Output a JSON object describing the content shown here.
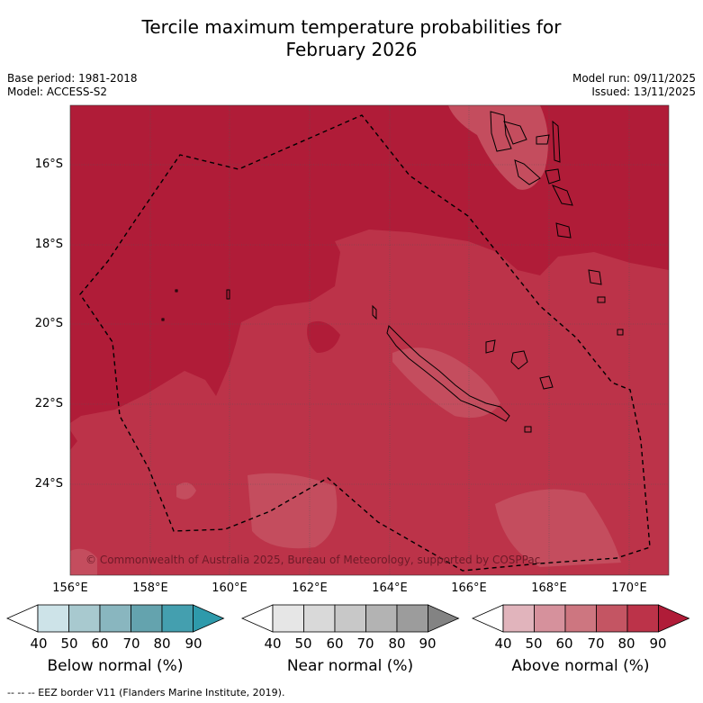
{
  "title": {
    "line1": "Tercile maximum temperature probabilities for",
    "line2": "February 2026"
  },
  "meta": {
    "base_period": "Base period: 1981-2018",
    "model": "Model: ACCESS-S2",
    "model_run": "Model run: 09/11/2025",
    "issued": "Issued: 13/11/2025"
  },
  "map": {
    "lat_labels": [
      "16°S",
      "18°S",
      "20°S",
      "22°S",
      "24°S"
    ],
    "lon_labels": [
      "156°E",
      "158°E",
      "160°E",
      "162°E",
      "164°E",
      "166°E",
      "168°E",
      "170°E"
    ],
    "copyright": "© Commonwealth of Australia 2025, Bureau of Meteorology, supported by COSPPac",
    "colors": {
      "above_80_90": "#b01c38",
      "above_70_80": "#bc3349",
      "above_60_70": "#c44d5e",
      "grid": "#555555"
    }
  },
  "colorbars": [
    {
      "title": "Below normal (%)",
      "ticks": [
        "40",
        "50",
        "60",
        "70",
        "80",
        "90"
      ],
      "colors": [
        "#cde3e8",
        "#a8c9cf",
        "#89b6bf",
        "#64a3ae",
        "#449faf",
        "#2e9aab"
      ]
    },
    {
      "title": "Near normal (%)",
      "ticks": [
        "40",
        "50",
        "60",
        "70",
        "80",
        "90"
      ],
      "colors": [
        "#e6e6e6",
        "#d9d9d9",
        "#c8c8c8",
        "#b3b3b3",
        "#9c9c9c",
        "#838383"
      ]
    },
    {
      "title": "Above normal (%)",
      "ticks": [
        "40",
        "50",
        "60",
        "70",
        "80",
        "90"
      ],
      "colors": [
        "#e1b4bc",
        "#d6919c",
        "#cd7680",
        "#c45563",
        "#bc3349",
        "#b01c38"
      ]
    }
  ],
  "footer": {
    "eez_legend": "--  --  -- EEZ border V11 (Flanders Marine Institute, 2019)."
  }
}
